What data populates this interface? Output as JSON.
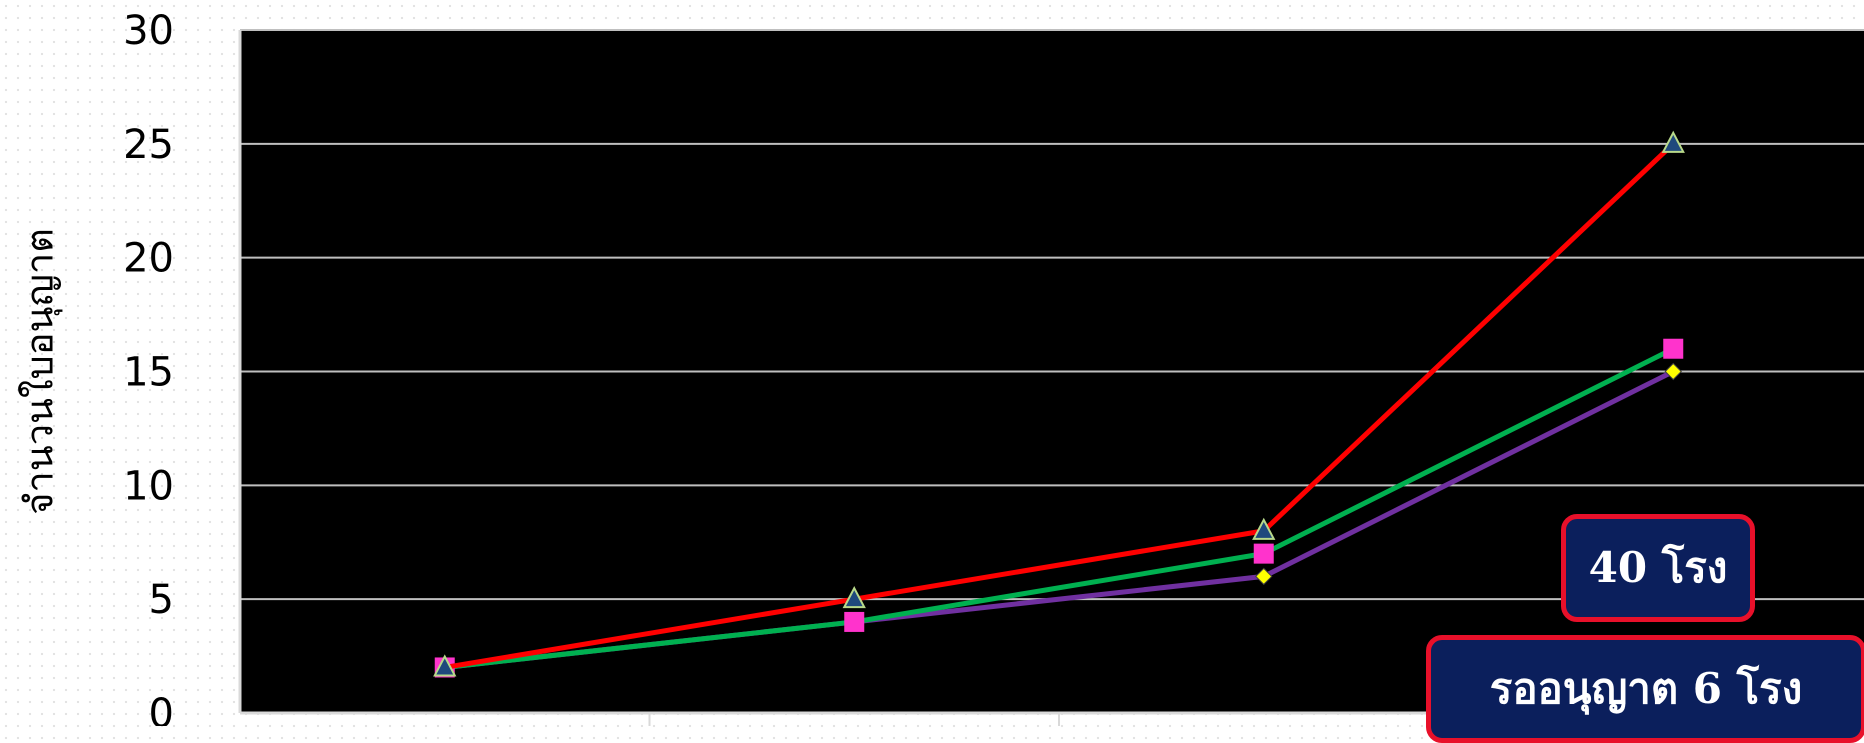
{
  "chart_data": {
    "type": "line",
    "ylabel": "จำนวนใบอนุญาต",
    "xlabel": "",
    "ylim": [
      0,
      30
    ],
    "yticks": [
      "0",
      "5",
      "10",
      "15",
      "20",
      "25",
      "30"
    ],
    "categories": [
      "",
      "",
      "",
      ""
    ],
    "series": [
      {
        "values": [
          2,
          4,
          6,
          15
        ],
        "color": "#7030a0",
        "marker": "diamond",
        "marker_color": "#ffff00"
      },
      {
        "values": [
          2,
          4,
          7,
          16
        ],
        "color": "#00b050",
        "marker": "square",
        "marker_color": "#ff33cc"
      },
      {
        "values": [
          2,
          5,
          8,
          25
        ],
        "color": "#ff0000",
        "marker": "triangle",
        "marker_color": "#1f497d"
      }
    ],
    "grid": true,
    "background": "#000000",
    "gridline_color": "#bfbfbf"
  },
  "callouts": [
    {
      "text": "40 โรง"
    },
    {
      "text": "รออนุญาต 6 โรง"
    }
  ],
  "colors": {
    "callout_fill": "#0b1f5c",
    "callout_border": "#e8102a"
  }
}
